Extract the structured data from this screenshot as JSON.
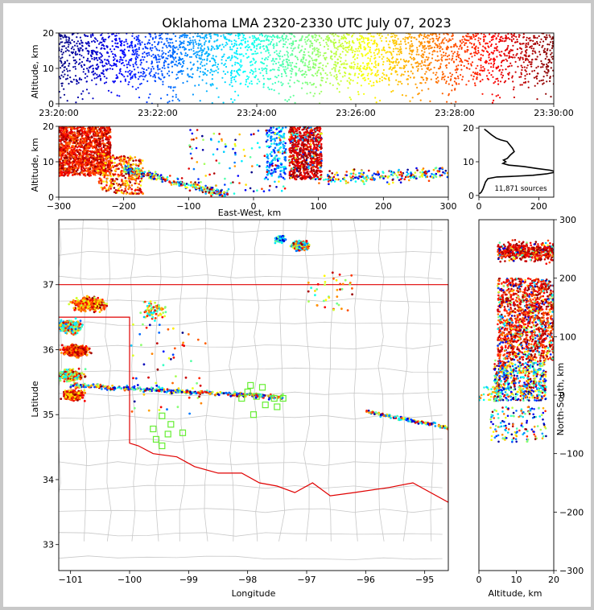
{
  "chart_data": {
    "type": "scatter",
    "title": "Oklahoma LMA 2320-2330 UTC July 07, 2023",
    "source_count_label": "11,871 sources",
    "panels": {
      "time_height": {
        "ylabel": "Altitude, km",
        "xlim": [
          "23:20:00",
          "23:30:00"
        ],
        "ylim": [
          0,
          20
        ],
        "x_ticks": [
          "23:20:00",
          "23:22:00",
          "23:24:00",
          "23:26:00",
          "23:28:00",
          "23:30:00"
        ],
        "y_ticks": [
          "0",
          "10",
          "20"
        ]
      },
      "east_west_height": {
        "xlabel": "East-West, km",
        "ylabel": "Altitude, km",
        "xlim": [
          -300,
          300
        ],
        "ylim": [
          0,
          20
        ],
        "x_ticks": [
          "−300",
          "−200",
          "−100",
          "0",
          "100",
          "200",
          "300"
        ],
        "y_ticks": [
          "0",
          "10",
          "20"
        ]
      },
      "altitude_histogram": {
        "xlim": [
          0,
          250
        ],
        "ylim": [
          0,
          20
        ],
        "x_ticks": [
          "0",
          "200"
        ],
        "y_ticks": [
          "0",
          "10",
          "20"
        ],
        "profile": [
          [
            2,
            0.5
          ],
          [
            8,
            1
          ],
          [
            14,
            2
          ],
          [
            18,
            3
          ],
          [
            22,
            4
          ],
          [
            30,
            5
          ],
          [
            60,
            5.5
          ],
          [
            120,
            5.7
          ],
          [
            180,
            6
          ],
          [
            225,
            6.4
          ],
          [
            260,
            7
          ],
          [
            238,
            7.5
          ],
          [
            195,
            8
          ],
          [
            150,
            8.6
          ],
          [
            100,
            9
          ],
          [
            80,
            9.5
          ],
          [
            90,
            10
          ],
          [
            82,
            10.5
          ],
          [
            95,
            11
          ],
          [
            105,
            12
          ],
          [
            118,
            13
          ],
          [
            112,
            14
          ],
          [
            103,
            15
          ],
          [
            94,
            16
          ],
          [
            72,
            16.5
          ],
          [
            58,
            17
          ],
          [
            42,
            18
          ],
          [
            28,
            19
          ],
          [
            18,
            19.7
          ]
        ]
      },
      "plan_view": {
        "xlabel": "Longitude",
        "ylabel": "Latitude",
        "xlim": [
          -101.2,
          -94.6
        ],
        "ylim": [
          32.6,
          38.0
        ],
        "x_ticks": [
          "−101",
          "−100",
          "−99",
          "−98",
          "−97",
          "−96",
          "−95"
        ],
        "y_ticks": [
          "33",
          "34",
          "35",
          "36",
          "37"
        ],
        "stations": [
          [
            -99.45,
            34.98
          ],
          [
            -99.3,
            34.85
          ],
          [
            -99.6,
            34.78
          ],
          [
            -99.1,
            34.72
          ],
          [
            -99.35,
            34.7
          ],
          [
            -99.55,
            34.62
          ],
          [
            -99.45,
            34.52
          ],
          [
            -98.1,
            35.25
          ],
          [
            -97.95,
            35.45
          ],
          [
            -97.75,
            35.42
          ],
          [
            -97.85,
            35.28
          ],
          [
            -97.7,
            35.15
          ],
          [
            -97.55,
            35.25
          ],
          [
            -97.4,
            35.25
          ],
          [
            -97.5,
            35.12
          ],
          [
            -97.9,
            35.0
          ],
          [
            -98.0,
            35.35
          ]
        ]
      },
      "north_south_height": {
        "xlabel": "Altitude, km",
        "ylabel": "North-South, km",
        "xlim": [
          0,
          20
        ],
        "ylim": [
          -300,
          300
        ],
        "x_ticks": [
          "0",
          "10",
          "20"
        ],
        "y_ticks": [
          "−300",
          "−200",
          "−100",
          "0",
          "100",
          "200",
          "300"
        ]
      }
    }
  }
}
